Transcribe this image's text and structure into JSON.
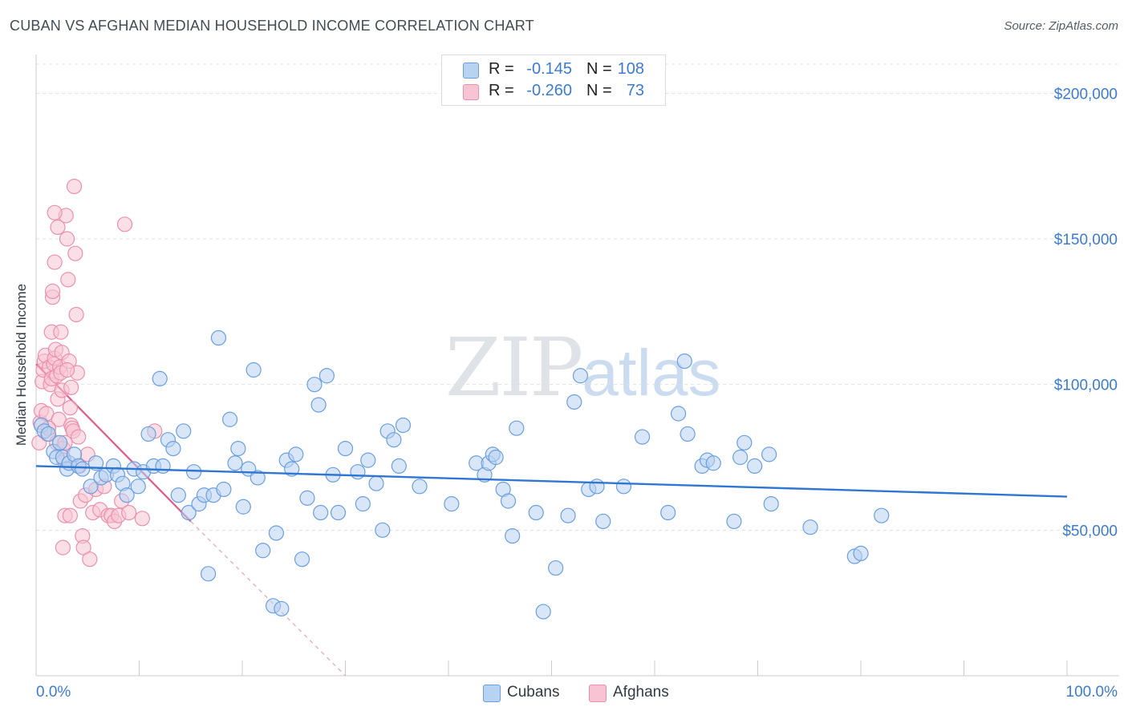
{
  "header": {
    "title": "CUBAN VS AFGHAN MEDIAN HOUSEHOLD INCOME CORRELATION CHART",
    "source": "Source: ZipAtlas.com"
  },
  "watermark": {
    "zip": "ZIP",
    "atlas": "atlas"
  },
  "colors": {
    "cuban_fill": "#b8d2f1",
    "cuban_stroke": "#6a9fe0",
    "cuban_line": "#2f76d2",
    "afghan_fill": "#f8c4d4",
    "afghan_stroke": "#eb90ac",
    "afghan_line": "#e05a8a",
    "axis_text": "#3b7bd1",
    "grid": "#dde1e6"
  },
  "legend": {
    "rows": [
      {
        "r_label": "R =",
        "r_value": "-0.145",
        "n_label": "N =",
        "n_value": "108"
      },
      {
        "r_label": "R =",
        "r_value": "-0.260",
        "n_label": "N =",
        "n_value": "73"
      }
    ]
  },
  "bottom_legend": {
    "cubans": "Cubans",
    "afghans": "Afghans"
  },
  "chart_data": {
    "type": "scatter",
    "title": "CUBAN VS AFGHAN MEDIAN HOUSEHOLD INCOME CORRELATION CHART",
    "xlabel": "",
    "ylabel": "Median Household Income",
    "xlim": [
      0,
      100
    ],
    "ylim": [
      0,
      210000
    ],
    "x_tick_labels": [
      "0.0%",
      "100.0%"
    ],
    "y_ticks": [
      {
        "value": 50000,
        "label": "$50,000"
      },
      {
        "value": 100000,
        "label": "$100,000"
      },
      {
        "value": 150000,
        "label": "$150,000"
      },
      {
        "value": 200000,
        "label": "$200,000"
      }
    ],
    "series": [
      {
        "name": "Cubans",
        "r": -0.145,
        "n": 108,
        "trend": {
          "x": [
            0,
            100
          ],
          "y": [
            72000,
            61500
          ]
        },
        "points": [
          [
            0.5,
            86000
          ],
          [
            0.8,
            84000
          ],
          [
            1.2,
            83000
          ],
          [
            1.7,
            77000
          ],
          [
            2.0,
            75000
          ],
          [
            2.3,
            80000
          ],
          [
            2.6,
            75000
          ],
          [
            3.0,
            71000
          ],
          [
            3.2,
            73000
          ],
          [
            3.7,
            76000
          ],
          [
            4.1,
            72000
          ],
          [
            4.5,
            71000
          ],
          [
            5.3,
            65000
          ],
          [
            5.8,
            73000
          ],
          [
            6.3,
            68000
          ],
          [
            6.8,
            69000
          ],
          [
            7.5,
            72000
          ],
          [
            7.9,
            69000
          ],
          [
            8.4,
            66000
          ],
          [
            8.8,
            62000
          ],
          [
            9.5,
            71000
          ],
          [
            9.9,
            65000
          ],
          [
            10.4,
            70000
          ],
          [
            10.9,
            83000
          ],
          [
            11.4,
            72000
          ],
          [
            12.0,
            102000
          ],
          [
            12.3,
            72000
          ],
          [
            12.8,
            81000
          ],
          [
            13.3,
            78000
          ],
          [
            13.8,
            62000
          ],
          [
            14.3,
            84000
          ],
          [
            14.8,
            56000
          ],
          [
            15.3,
            70000
          ],
          [
            15.8,
            59000
          ],
          [
            16.3,
            62000
          ],
          [
            16.7,
            35000
          ],
          [
            17.2,
            62000
          ],
          [
            17.7,
            116000
          ],
          [
            18.2,
            64000
          ],
          [
            18.8,
            88000
          ],
          [
            19.3,
            73000
          ],
          [
            19.6,
            78000
          ],
          [
            20.1,
            58000
          ],
          [
            20.6,
            71000
          ],
          [
            21.1,
            105000
          ],
          [
            21.5,
            68000
          ],
          [
            22.0,
            43000
          ],
          [
            23.0,
            24000
          ],
          [
            23.3,
            49000
          ],
          [
            23.8,
            23000
          ],
          [
            24.3,
            74000
          ],
          [
            24.8,
            71000
          ],
          [
            25.2,
            76000
          ],
          [
            25.8,
            40000
          ],
          [
            26.3,
            61000
          ],
          [
            27.0,
            100000
          ],
          [
            27.4,
            93000
          ],
          [
            27.6,
            56000
          ],
          [
            28.2,
            103000
          ],
          [
            28.8,
            69000
          ],
          [
            29.3,
            56000
          ],
          [
            30.0,
            78000
          ],
          [
            31.2,
            70000
          ],
          [
            31.7,
            59000
          ],
          [
            32.2,
            74000
          ],
          [
            33.0,
            66000
          ],
          [
            33.6,
            50000
          ],
          [
            34.1,
            84000
          ],
          [
            34.7,
            81000
          ],
          [
            35.2,
            72000
          ],
          [
            35.6,
            86000
          ],
          [
            37.2,
            65000
          ],
          [
            40.3,
            59000
          ],
          [
            42.7,
            73000
          ],
          [
            43.5,
            69000
          ],
          [
            43.9,
            73000
          ],
          [
            44.3,
            76000
          ],
          [
            44.6,
            75000
          ],
          [
            45.3,
            64000
          ],
          [
            45.8,
            60000
          ],
          [
            46.2,
            48000
          ],
          [
            46.6,
            85000
          ],
          [
            48.5,
            56000
          ],
          [
            49.2,
            22000
          ],
          [
            50.4,
            37000
          ],
          [
            51.6,
            55000
          ],
          [
            52.2,
            94000
          ],
          [
            52.8,
            103000
          ],
          [
            53.6,
            64000
          ],
          [
            54.4,
            65000
          ],
          [
            55.0,
            53000
          ],
          [
            57.0,
            65000
          ],
          [
            58.8,
            82000
          ],
          [
            61.3,
            56000
          ],
          [
            62.3,
            90000
          ],
          [
            62.9,
            108000
          ],
          [
            63.2,
            83000
          ],
          [
            64.6,
            72000
          ],
          [
            65.1,
            74000
          ],
          [
            65.7,
            73000
          ],
          [
            67.7,
            53000
          ],
          [
            68.3,
            75000
          ],
          [
            68.7,
            80000
          ],
          [
            69.7,
            72000
          ],
          [
            71.1,
            76000
          ],
          [
            71.3,
            59000
          ],
          [
            75.1,
            51000
          ],
          [
            79.4,
            41000
          ],
          [
            80.0,
            42000
          ],
          [
            82.0,
            55000
          ]
        ]
      },
      {
        "name": "Afghans",
        "r": -0.26,
        "n": 73,
        "trend": {
          "x": [
            0,
            15
          ],
          "y": [
            107000,
            53000
          ]
        },
        "trend_dashed": {
          "x": [
            15,
            30
          ],
          "y": [
            53000,
            0
          ]
        },
        "points": [
          [
            0.3,
            80000
          ],
          [
            0.4,
            87000
          ],
          [
            0.5,
            91000
          ],
          [
            0.6,
            101000
          ],
          [
            0.7,
            105000
          ],
          [
            0.8,
            108000
          ],
          [
            0.9,
            110000
          ],
          [
            1.0,
            90000
          ],
          [
            1.1,
            83000
          ],
          [
            1.2,
            85000
          ],
          [
            1.3,
            106000
          ],
          [
            1.4,
            100000
          ],
          [
            1.5,
            102000
          ],
          [
            1.5,
            118000
          ],
          [
            1.6,
            130000
          ],
          [
            1.6,
            132000
          ],
          [
            1.7,
            107000
          ],
          [
            1.8,
            109000
          ],
          [
            1.9,
            112000
          ],
          [
            2.0,
            103000
          ],
          [
            2.0,
            80000
          ],
          [
            2.1,
            95000
          ],
          [
            2.2,
            88000
          ],
          [
            2.3,
            106000
          ],
          [
            2.4,
            104000
          ],
          [
            2.5,
            98000
          ],
          [
            2.5,
            111000
          ],
          [
            2.6,
            78000
          ],
          [
            2.7,
            74000
          ],
          [
            2.8,
            55000
          ],
          [
            2.9,
            158000
          ],
          [
            3.0,
            150000
          ],
          [
            3.1,
            136000
          ],
          [
            3.2,
            108000
          ],
          [
            3.3,
            92000
          ],
          [
            3.4,
            86000
          ],
          [
            3.5,
            85000
          ],
          [
            3.6,
            84000
          ],
          [
            3.7,
            168000
          ],
          [
            3.8,
            145000
          ],
          [
            3.9,
            124000
          ],
          [
            4.0,
            104000
          ],
          [
            4.1,
            82000
          ],
          [
            4.2,
            72000
          ],
          [
            4.3,
            60000
          ],
          [
            4.5,
            48000
          ],
          [
            4.6,
            44000
          ],
          [
            4.8,
            62000
          ],
          [
            5.0,
            76000
          ],
          [
            5.2,
            40000
          ],
          [
            5.5,
            56000
          ],
          [
            5.8,
            64000
          ],
          [
            6.2,
            57000
          ],
          [
            6.6,
            65000
          ],
          [
            7.0,
            55000
          ],
          [
            7.3,
            55000
          ],
          [
            7.6,
            53000
          ],
          [
            8.0,
            55000
          ],
          [
            8.3,
            60000
          ],
          [
            8.6,
            155000
          ],
          [
            9.0,
            56000
          ],
          [
            10.3,
            54000
          ],
          [
            11.5,
            84000
          ],
          [
            1.8,
            142000
          ],
          [
            2.1,
            154000
          ],
          [
            1.8,
            159000
          ],
          [
            2.4,
            118000
          ],
          [
            2.6,
            44000
          ],
          [
            3.0,
            105000
          ],
          [
            3.3,
            55000
          ],
          [
            1.2,
            85000
          ],
          [
            2.8,
            80000
          ],
          [
            3.4,
            99000
          ]
        ]
      }
    ],
    "legend_position": "top-center"
  }
}
